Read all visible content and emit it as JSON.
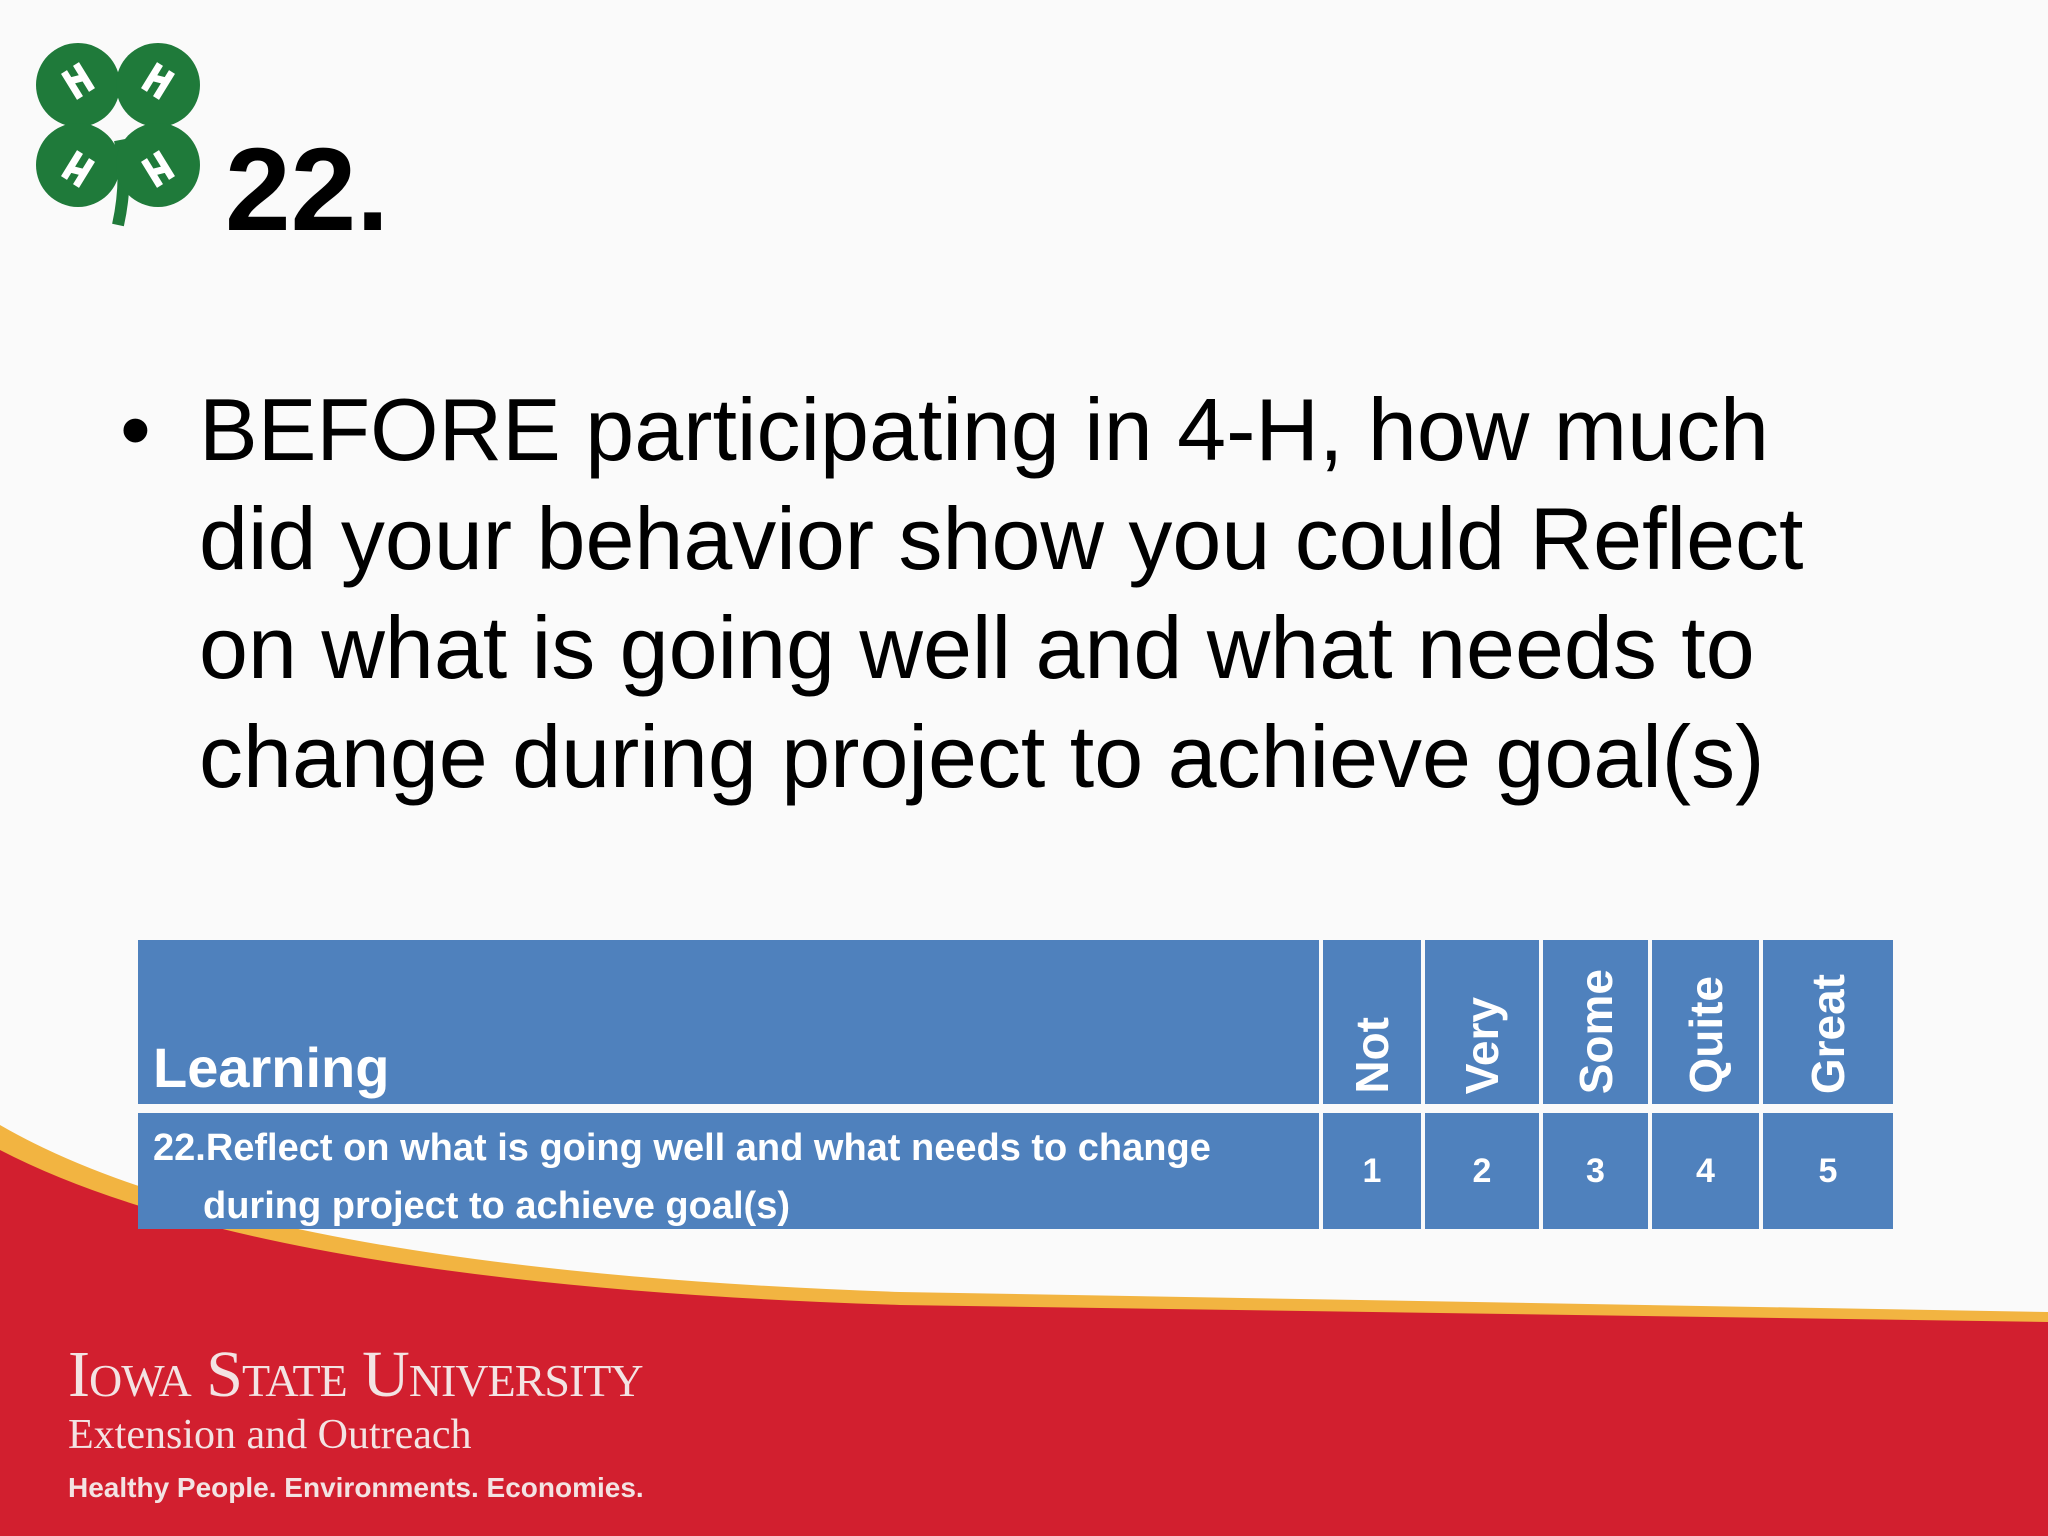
{
  "header": {
    "title": "22."
  },
  "bullet": {
    "lines": [
      "BEFORE participating in 4-H, how much",
      "did your behavior show you could Reflect",
      "on what is going well and what needs to",
      "change during project to achieve goal(s)"
    ]
  },
  "table": {
    "header": [
      "Learning",
      "Not",
      "Very",
      "Some",
      "Quite",
      "Great"
    ],
    "rows": [
      [
        "22.Reflect on what is going well and what needs to change during project to achieve goal(s)",
        1,
        2,
        3,
        4,
        5
      ]
    ]
  },
  "footer": {
    "university": "Iowa State University",
    "unit": "Extension and Outreach",
    "tagline": "Healthy People. Environments. Economies."
  }
}
